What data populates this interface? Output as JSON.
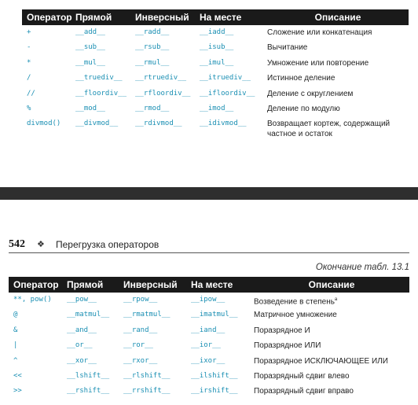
{
  "headers": {
    "operator": "Оператор",
    "direct": "Прямой",
    "inverse": "Инверсный",
    "inplace": "На месте",
    "description": "Описание"
  },
  "table1": [
    {
      "op": "+",
      "direct": "__add__",
      "inverse": "__radd__",
      "inplace": "__iadd__",
      "desc": "Сложение или конкатенация"
    },
    {
      "op": "-",
      "direct": "__sub__",
      "inverse": "__rsub__",
      "inplace": "__isub__",
      "desc": "Вычитание"
    },
    {
      "op": "*",
      "direct": "__mul__",
      "inverse": "__rmul__",
      "inplace": "__imul__",
      "desc": "Умножение или повторение"
    },
    {
      "op": "/",
      "direct": "__truediv__",
      "inverse": "__rtruediv__",
      "inplace": "__itruediv__",
      "desc": "Истинное деление"
    },
    {
      "op": "//",
      "direct": "__floordiv__",
      "inverse": "__rfloordiv__",
      "inplace": "__ifloordiv__",
      "desc": "Деление с округлением"
    },
    {
      "op": "%",
      "direct": "__mod__",
      "inverse": "__rmod__",
      "inplace": "__imod__",
      "desc": "Деление по модулю"
    },
    {
      "op": "divmod()",
      "direct": "__divmod__",
      "inverse": "__rdivmod__",
      "inplace": "__idivmod__",
      "desc": "Возвращает кортеж, содержащий частное и остаток"
    }
  ],
  "page_header": {
    "page_number": "542",
    "ornament": "❖",
    "chapter": "Перегрузка операторов"
  },
  "continuation": "Окончание табл. 13.1",
  "table2": [
    {
      "op": "**, pow()",
      "direct": "__pow__",
      "inverse": "__rpow__",
      "inplace": "__ipow__",
      "desc": "Возведение в степень",
      "note": "a"
    },
    {
      "op": "@",
      "direct": "__matmul__",
      "inverse": "__rmatmul__",
      "inplace": "__imatmul__",
      "desc": "Матричное умножение"
    },
    {
      "op": "&",
      "direct": "__and__",
      "inverse": "__rand__",
      "inplace": "__iand__",
      "desc": "Поразрядное И"
    },
    {
      "op": "|",
      "direct": "__or__",
      "inverse": "__ror__",
      "inplace": "__ior__",
      "desc": "Поразрядное ИЛИ"
    },
    {
      "op": "^",
      "direct": "__xor__",
      "inverse": "__rxor__",
      "inplace": "__ixor__",
      "desc": "Поразрядное ИСКЛЮЧАЮЩЕЕ ИЛИ"
    },
    {
      "op": "<<",
      "direct": "__lshift__",
      "inverse": "__rlshift__",
      "inplace": "__ilshift__",
      "desc": "Поразрядный сдвиг влево"
    },
    {
      "op": ">>",
      "direct": "__rshift__",
      "inverse": "__rrshift__",
      "inplace": "__irshift__",
      "desc": "Поразрядный сдвиг вправо"
    }
  ]
}
